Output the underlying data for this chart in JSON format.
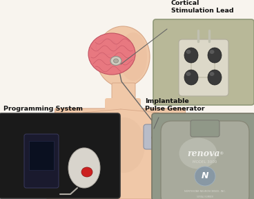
{
  "bg_color": "#f8f4ee",
  "labels": {
    "cortical": "Cortical\nStimulation Lead",
    "programming": "Programming System",
    "implantable": "Implantable\nPulse Generator"
  },
  "label_fontsize": 6.8,
  "label_fontweight": "bold",
  "skin_color": "#f0c8a8",
  "skin_edge": "#d8a888",
  "brain_color": "#e87880",
  "brain_edge": "#c05060",
  "wire_color": "#666666",
  "implant_color": "#b8bcc8",
  "implant_edge": "#8890a0",
  "inset_cortical_bg": "#b8b898",
  "inset_prog_bg": "#1a1a1a",
  "inset_renova_bg": "#909888",
  "cortical_pad_color": "#d8d4c0",
  "renova_device_color": "#a8b0a0",
  "renova_text_color": "#f0f0ec",
  "annotation_line_color": "#666666"
}
